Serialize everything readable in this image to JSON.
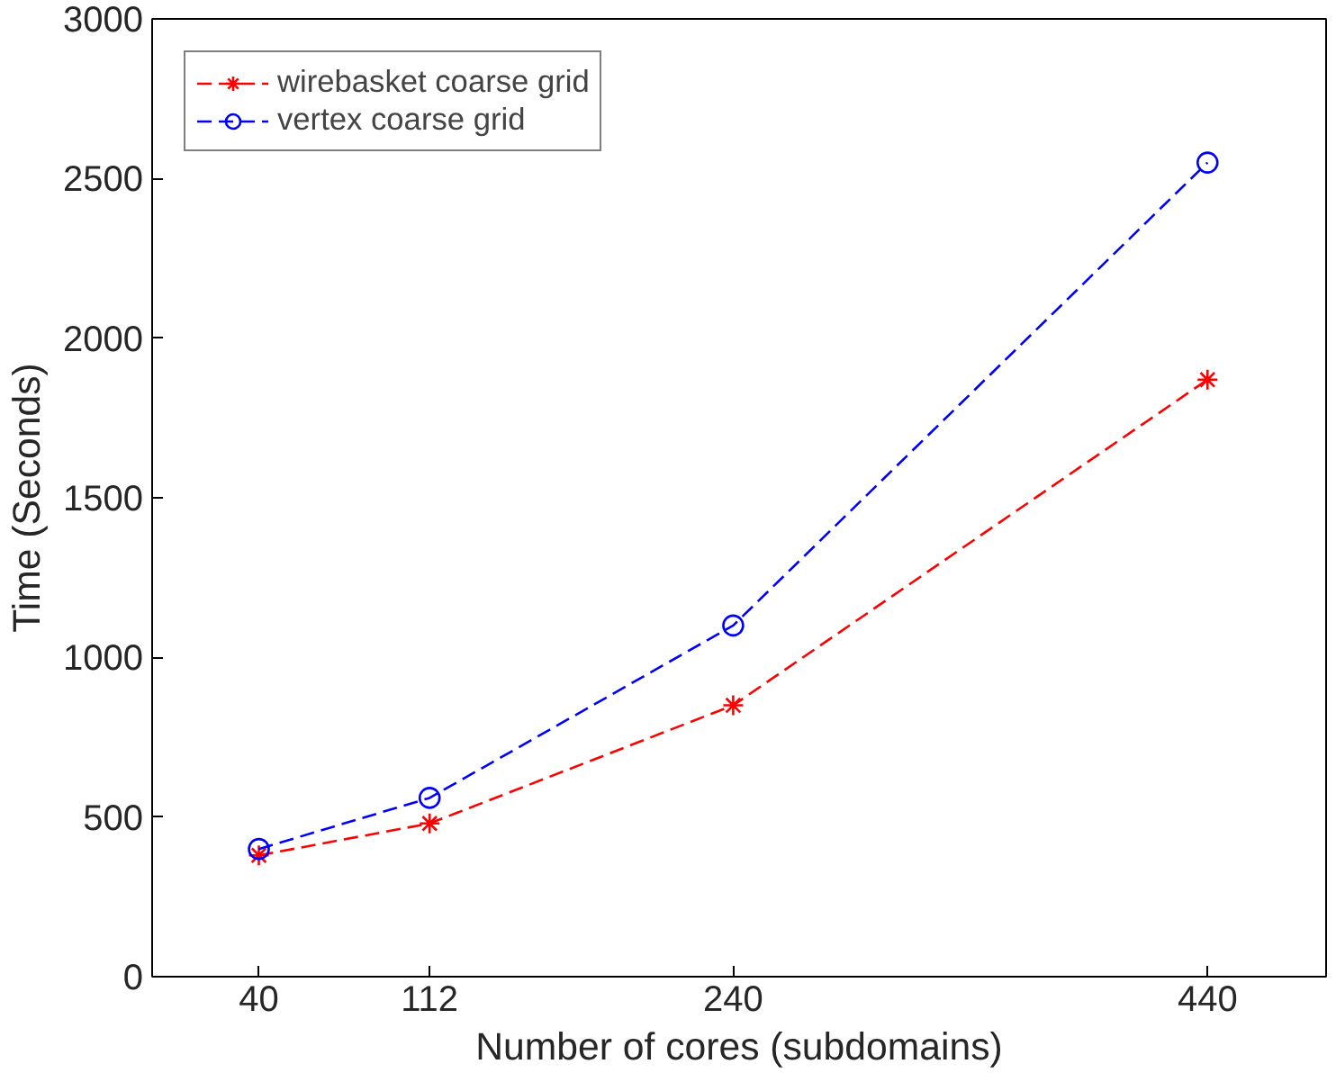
{
  "chart_data": {
    "type": "line",
    "xlabel": "Number of cores (subdomains)",
    "ylabel": "Time (Seconds)",
    "x": [
      40,
      112,
      240,
      440
    ],
    "series": [
      {
        "name": "wirebasket coarse grid",
        "color": "#ff0000",
        "values": [
          380,
          480,
          850,
          1870
        ],
        "marker": "cross"
      },
      {
        "name": "vertex coarse grid",
        "color": "#0000ff",
        "values": [
          400,
          560,
          1100,
          2550
        ],
        "marker": "circle"
      }
    ],
    "xlim": [
      -5,
      490
    ],
    "ylim": [
      0,
      3000
    ],
    "xticks": [
      40,
      112,
      240,
      440
    ],
    "yticks": [
      0,
      500,
      1000,
      1500,
      2000,
      2500,
      3000
    ],
    "grid": false,
    "legend": "top left",
    "line_style": "dashed"
  }
}
